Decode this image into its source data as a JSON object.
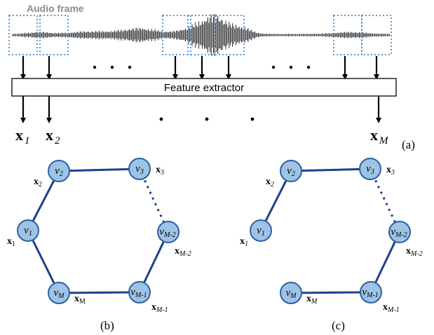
{
  "audio": {
    "title": "Audio frame",
    "extractor_label": "Feature extractor"
  },
  "features": {
    "x1": {
      "base": "x",
      "sub": "1"
    },
    "x2": {
      "base": "x",
      "sub": "2"
    },
    "xM": {
      "base": "x",
      "sub": "M"
    }
  },
  "panel_labels": {
    "a": "(a)",
    "b": "(b)",
    "c": "(c)"
  },
  "graph_b": {
    "nodes": [
      {
        "id": "v2",
        "base": "v",
        "sub": "2",
        "feat_base": "x",
        "feat_sub": "2"
      },
      {
        "id": "v3",
        "base": "v",
        "sub": "3",
        "feat_base": "x",
        "feat_sub": "3"
      },
      {
        "id": "v1",
        "base": "v",
        "sub": "1",
        "feat_base": "x",
        "feat_sub": "1"
      },
      {
        "id": "vM2",
        "base": "v",
        "sub": "M-2",
        "feat_base": "x",
        "feat_sub": "M-2"
      },
      {
        "id": "vM",
        "base": "v",
        "sub": "M",
        "feat_base": "x",
        "feat_sub": "M"
      },
      {
        "id": "vM1",
        "base": "v",
        "sub": "M-1",
        "feat_base": "x",
        "feat_sub": "M-1"
      }
    ]
  },
  "graph_c": {
    "nodes": [
      {
        "id": "v2",
        "base": "v",
        "sub": "2",
        "feat_base": "x",
        "feat_sub": "2"
      },
      {
        "id": "v3",
        "base": "v",
        "sub": "3",
        "feat_base": "x",
        "feat_sub": "3"
      },
      {
        "id": "v1",
        "base": "v",
        "sub": "1",
        "feat_base": "x",
        "feat_sub": "1"
      },
      {
        "id": "vM2",
        "base": "v",
        "sub": "M-2",
        "feat_base": "x",
        "feat_sub": "M-2"
      },
      {
        "id": "vM",
        "base": "v",
        "sub": "M",
        "feat_base": "x",
        "feat_sub": "M"
      },
      {
        "id": "vM1",
        "base": "v",
        "sub": "M-1",
        "feat_base": "x",
        "feat_sub": "M-1"
      }
    ]
  },
  "colors": {
    "node_fill": "#9dc3e6",
    "node_stroke": "#2e5fa3",
    "edge": "#1f3f8f",
    "frame_box": "#5b9bd5",
    "waveform": "#111111"
  }
}
